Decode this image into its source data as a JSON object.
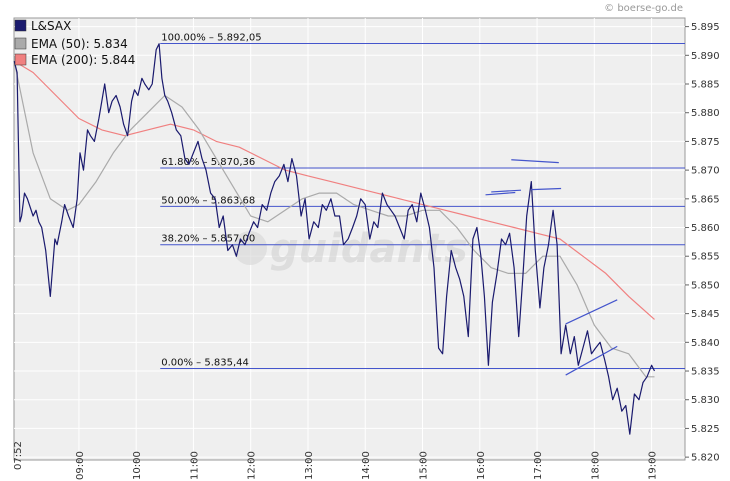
{
  "chart_data": {
    "type": "line",
    "title": "",
    "copyright": "© boerse-go.de",
    "watermark": "guidants",
    "xlabel": "",
    "ylabel": "",
    "start_label": "07:52",
    "x_ticks": [
      "09:00",
      "10:00",
      "11:00",
      "12:00",
      "13:00",
      "14:00",
      "15:00",
      "16:00",
      "17:00",
      "18:00",
      "19:00"
    ],
    "x_tick_hours": [
      9,
      10,
      11,
      12,
      13,
      14,
      15,
      16,
      17,
      18,
      19
    ],
    "xlim": [
      7.8667,
      19.5833
    ],
    "ylim": [
      5.8195,
      5.8965
    ],
    "y_ticks": [
      "5.895",
      "5.890",
      "5.885",
      "5.880",
      "5.875",
      "5.870",
      "5.865",
      "5.860",
      "5.855",
      "5.850",
      "5.845",
      "5.840",
      "5.835",
      "5.830",
      "5.825",
      "5.820"
    ],
    "y_tick_values": [
      5.895,
      5.89,
      5.885,
      5.88,
      5.875,
      5.87,
      5.865,
      5.86,
      5.855,
      5.85,
      5.845,
      5.84,
      5.835,
      5.83,
      5.825,
      5.82
    ],
    "grid": true,
    "legend_position": "top-left",
    "colors": {
      "price": "#1a1a6e",
      "ema50": "#aaaaaa",
      "ema200": "#f08080",
      "fib": "#4455cc",
      "trend": "#4455cc",
      "grid": "#ffffff",
      "plot_bg": "#efefef"
    },
    "legend": [
      {
        "label": "L&SAX",
        "color": "#1a1a6e"
      },
      {
        "label": "EMA (50): 5.834",
        "color": "#aaaaaa"
      },
      {
        "label": "EMA (200): 5.844",
        "color": "#f08080"
      }
    ],
    "fibonacci": [
      {
        "label": "100.00% – 5.892,05",
        "value": 5.89205,
        "x_start": 10.42
      },
      {
        "label": "61.80% – 5.870,36",
        "value": 5.87036,
        "x_start": 10.42
      },
      {
        "label": "50.00% – 5.863,68",
        "value": 5.86368,
        "x_start": 10.42
      },
      {
        "label": "38.20% – 5.857,00",
        "value": 5.857,
        "x_start": 10.42
      },
      {
        "label": "0.00% – 5.835,44",
        "value": 5.83544,
        "x_start": 10.42
      }
    ],
    "trendlines": [
      [
        [
          16.55,
          5.8718
        ],
        [
          17.38,
          5.8713
        ]
      ],
      [
        [
          16.1,
          5.8657
        ],
        [
          16.62,
          5.8661
        ]
      ],
      [
        [
          16.2,
          5.8662
        ],
        [
          16.72,
          5.8665
        ]
      ],
      [
        [
          16.9,
          5.8666
        ],
        [
          17.42,
          5.8668
        ]
      ],
      [
        [
          17.5,
          5.8432
        ],
        [
          18.4,
          5.8474
        ]
      ],
      [
        [
          17.5,
          5.8343
        ],
        [
          18.4,
          5.8393
        ]
      ]
    ],
    "series": [
      {
        "name": "L&SAX",
        "x": [
          7.87,
          7.92,
          7.97,
          8.0,
          8.05,
          8.1,
          8.2,
          8.25,
          8.3,
          8.35,
          8.42,
          8.5,
          8.58,
          8.62,
          8.7,
          8.75,
          8.82,
          8.9,
          8.97,
          9.02,
          9.08,
          9.15,
          9.2,
          9.27,
          9.35,
          9.45,
          9.52,
          9.58,
          9.65,
          9.72,
          9.78,
          9.85,
          9.92,
          9.97,
          10.03,
          10.1,
          10.15,
          10.22,
          10.28,
          10.35,
          10.4,
          10.45,
          10.5,
          10.55,
          10.62,
          10.7,
          10.78,
          10.85,
          10.92,
          11.0,
          11.08,
          11.15,
          11.22,
          11.3,
          11.38,
          11.45,
          11.52,
          11.6,
          11.68,
          11.75,
          11.82,
          11.9,
          11.97,
          12.05,
          12.12,
          12.2,
          12.28,
          12.35,
          12.42,
          12.5,
          12.58,
          12.65,
          12.72,
          12.8,
          12.88,
          12.95,
          13.02,
          13.1,
          13.18,
          13.25,
          13.32,
          13.4,
          13.47,
          13.55,
          13.62,
          13.7,
          13.78,
          13.85,
          13.92,
          14.0,
          14.08,
          14.15,
          14.22,
          14.3,
          14.38,
          14.45,
          14.52,
          14.6,
          14.68,
          14.75,
          14.82,
          14.9,
          14.97,
          15.05,
          15.12,
          15.2,
          15.28,
          15.35,
          15.42,
          15.5,
          15.58,
          15.65,
          15.72,
          15.8,
          15.88,
          15.95,
          16.02,
          16.08,
          16.15,
          16.22,
          16.3,
          16.38,
          16.45,
          16.52,
          16.6,
          16.68,
          16.75,
          16.82,
          16.9,
          16.97,
          17.05,
          17.12,
          17.2,
          17.28,
          17.35,
          17.42,
          17.5,
          17.58,
          17.65,
          17.72,
          17.8,
          17.88,
          17.95,
          18.02,
          18.1,
          18.18,
          18.25,
          18.32,
          18.4,
          18.48,
          18.55,
          18.62,
          18.7,
          18.78,
          18.85,
          18.92,
          19.0,
          19.05
        ],
        "values": [
          5.889,
          5.887,
          5.861,
          5.862,
          5.866,
          5.865,
          5.862,
          5.863,
          5.861,
          5.86,
          5.856,
          5.848,
          5.858,
          5.857,
          5.861,
          5.864,
          5.862,
          5.86,
          5.865,
          5.873,
          5.87,
          5.877,
          5.876,
          5.875,
          5.879,
          5.885,
          5.88,
          5.882,
          5.883,
          5.881,
          5.878,
          5.876,
          5.882,
          5.884,
          5.883,
          5.886,
          5.885,
          5.884,
          5.885,
          5.891,
          5.892,
          5.886,
          5.883,
          5.882,
          5.88,
          5.877,
          5.876,
          5.872,
          5.871,
          5.873,
          5.875,
          5.872,
          5.87,
          5.866,
          5.865,
          5.86,
          5.862,
          5.856,
          5.857,
          5.855,
          5.858,
          5.857,
          5.859,
          5.861,
          5.86,
          5.864,
          5.863,
          5.866,
          5.868,
          5.869,
          5.871,
          5.868,
          5.872,
          5.869,
          5.862,
          5.865,
          5.858,
          5.861,
          5.86,
          5.864,
          5.863,
          5.865,
          5.862,
          5.862,
          5.857,
          5.858,
          5.86,
          5.862,
          5.865,
          5.864,
          5.858,
          5.861,
          5.86,
          5.866,
          5.864,
          5.863,
          5.862,
          5.86,
          5.858,
          5.863,
          5.864,
          5.861,
          5.866,
          5.863,
          5.86,
          5.853,
          5.839,
          5.838,
          5.848,
          5.856,
          5.853,
          5.851,
          5.848,
          5.841,
          5.858,
          5.86,
          5.855,
          5.848,
          5.836,
          5.847,
          5.852,
          5.858,
          5.857,
          5.859,
          5.853,
          5.841,
          5.851,
          5.862,
          5.868,
          5.856,
          5.846,
          5.853,
          5.857,
          5.863,
          5.857,
          5.838,
          5.843,
          5.838,
          5.841,
          5.836,
          5.839,
          5.842,
          5.838,
          5.839,
          5.84,
          5.837,
          5.834,
          5.83,
          5.832,
          5.828,
          5.829,
          5.824,
          5.831,
          5.83,
          5.833,
          5.834,
          5.836,
          5.835
        ]
      },
      {
        "name": "EMA (50)",
        "x": [
          7.87,
          8.2,
          8.5,
          8.8,
          9.0,
          9.3,
          9.6,
          9.9,
          10.2,
          10.5,
          10.8,
          11.1,
          11.4,
          11.7,
          12.0,
          12.3,
          12.6,
          12.9,
          13.2,
          13.5,
          13.8,
          14.1,
          14.4,
          14.7,
          15.0,
          15.3,
          15.6,
          15.9,
          16.2,
          16.5,
          16.8,
          17.1,
          17.4,
          17.7,
          18.0,
          18.3,
          18.6,
          18.9,
          19.05
        ],
        "values": [
          5.889,
          5.873,
          5.865,
          5.863,
          5.864,
          5.868,
          5.873,
          5.877,
          5.88,
          5.883,
          5.881,
          5.877,
          5.872,
          5.867,
          5.862,
          5.861,
          5.863,
          5.865,
          5.866,
          5.866,
          5.864,
          5.863,
          5.862,
          5.862,
          5.863,
          5.863,
          5.86,
          5.856,
          5.853,
          5.852,
          5.852,
          5.855,
          5.855,
          5.85,
          5.843,
          5.839,
          5.838,
          5.834,
          5.834
        ]
      },
      {
        "name": "EMA (200)",
        "x": [
          7.87,
          8.2,
          8.6,
          9.0,
          9.4,
          9.8,
          10.2,
          10.6,
          11.0,
          11.4,
          11.8,
          12.2,
          12.6,
          13.0,
          13.4,
          13.8,
          14.2,
          14.6,
          15.0,
          15.4,
          15.8,
          16.2,
          16.6,
          17.0,
          17.4,
          17.8,
          18.2,
          18.6,
          19.05
        ],
        "values": [
          5.889,
          5.887,
          5.883,
          5.879,
          5.877,
          5.876,
          5.877,
          5.878,
          5.877,
          5.875,
          5.874,
          5.872,
          5.87,
          5.869,
          5.868,
          5.867,
          5.866,
          5.865,
          5.864,
          5.863,
          5.862,
          5.861,
          5.86,
          5.859,
          5.858,
          5.855,
          5.852,
          5.848,
          5.844
        ]
      }
    ]
  }
}
